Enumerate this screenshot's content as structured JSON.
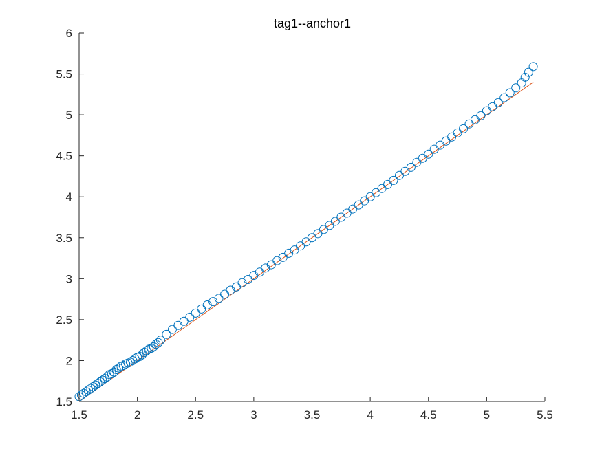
{
  "chart_data": {
    "type": "scatter",
    "title": "tag1--anchor1",
    "xlabel": "",
    "ylabel": "",
    "xlim": [
      1.5,
      5.5
    ],
    "ylim": [
      1.5,
      6
    ],
    "xticks": [
      "1.5",
      "2",
      "2.5",
      "3",
      "3.5",
      "4",
      "4.5",
      "5",
      "5.5"
    ],
    "yticks": [
      "1.5",
      "2",
      "2.5",
      "3",
      "3.5",
      "4",
      "4.5",
      "5",
      "5.5",
      "6"
    ],
    "grid": false,
    "legend": "none",
    "colors": {
      "scatter": "#0072BD",
      "line": "#D95319",
      "axis": "#262626"
    },
    "series": [
      {
        "kind": "scatter",
        "x": [
          1.5,
          1.52,
          1.54,
          1.56,
          1.58,
          1.6,
          1.62,
          1.64,
          1.66,
          1.68,
          1.7,
          1.72,
          1.74,
          1.76,
          1.78,
          1.8,
          1.82,
          1.84,
          1.86,
          1.88,
          1.9,
          1.92,
          1.94,
          1.96,
          1.98,
          2.0,
          2.02,
          2.04,
          2.06,
          2.08,
          2.1,
          2.12,
          2.14,
          2.16,
          2.18,
          2.2,
          2.25,
          2.3,
          2.35,
          2.4,
          2.45,
          2.5,
          2.55,
          2.6,
          2.65,
          2.7,
          2.75,
          2.8,
          2.85,
          2.9,
          2.95,
          3.0,
          3.05,
          3.1,
          3.15,
          3.2,
          3.25,
          3.3,
          3.35,
          3.4,
          3.45,
          3.5,
          3.55,
          3.6,
          3.65,
          3.7,
          3.75,
          3.8,
          3.85,
          3.9,
          3.95,
          4.0,
          4.05,
          4.1,
          4.15,
          4.2,
          4.25,
          4.3,
          4.35,
          4.4,
          4.45,
          4.5,
          4.55,
          4.6,
          4.65,
          4.7,
          4.75,
          4.8,
          4.85,
          4.9,
          4.95,
          5.0,
          5.05,
          5.1,
          5.15,
          5.2,
          5.25,
          5.3,
          5.33,
          5.36,
          5.4
        ],
        "y": [
          1.56,
          1.58,
          1.6,
          1.62,
          1.64,
          1.66,
          1.68,
          1.7,
          1.72,
          1.74,
          1.76,
          1.78,
          1.8,
          1.83,
          1.84,
          1.86,
          1.89,
          1.91,
          1.93,
          1.94,
          1.96,
          1.97,
          1.98,
          2.0,
          2.02,
          2.04,
          2.05,
          2.07,
          2.1,
          2.12,
          2.14,
          2.15,
          2.17,
          2.2,
          2.22,
          2.25,
          2.32,
          2.38,
          2.43,
          2.48,
          2.53,
          2.58,
          2.63,
          2.68,
          2.72,
          2.76,
          2.81,
          2.86,
          2.9,
          2.95,
          2.99,
          3.04,
          3.08,
          3.13,
          3.17,
          3.22,
          3.26,
          3.31,
          3.35,
          3.4,
          3.45,
          3.5,
          3.55,
          3.6,
          3.65,
          3.7,
          3.75,
          3.8,
          3.85,
          3.9,
          3.95,
          4.0,
          4.05,
          4.1,
          4.15,
          4.2,
          4.26,
          4.31,
          4.36,
          4.42,
          4.47,
          4.52,
          4.58,
          4.63,
          4.68,
          4.73,
          4.78,
          4.83,
          4.89,
          4.94,
          4.99,
          5.05,
          5.1,
          5.15,
          5.21,
          5.27,
          5.33,
          5.39,
          5.46,
          5.52,
          5.59
        ]
      },
      {
        "kind": "line",
        "x": [
          1.5,
          5.4
        ],
        "y": [
          1.5,
          5.4
        ]
      }
    ]
  }
}
